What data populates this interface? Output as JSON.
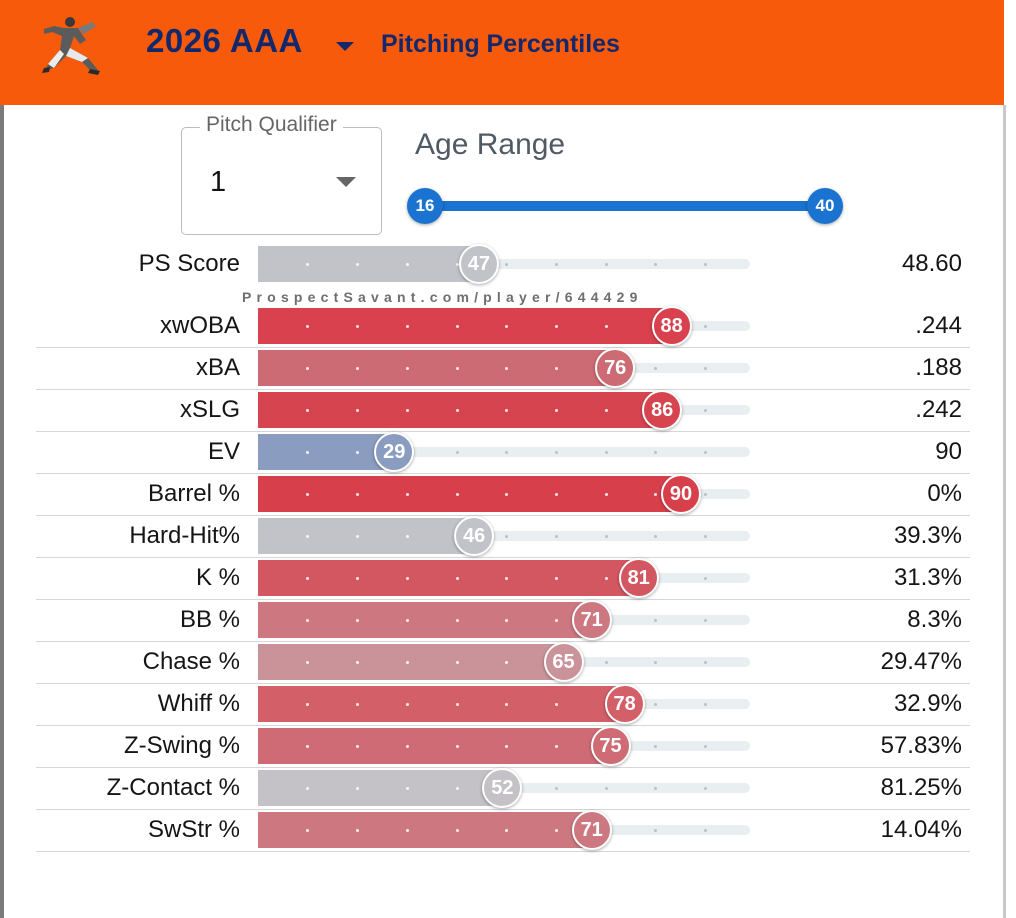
{
  "header": {
    "season": "2026 AAA",
    "title": "Pitching Percentiles",
    "logo_icon": "pitcher-silhouette-icon",
    "background_color": "#f75a0a",
    "text_color": "#13286b"
  },
  "filters": {
    "pitch_qualifier_label": "Pitch Qualifier",
    "pitch_qualifier_value": "1",
    "age_range_label": "Age Range",
    "age_min": "16",
    "age_max": "40",
    "slider_color": "#1a73d0"
  },
  "watermark": "ProspectSavant.com/player/644429",
  "metrics": [
    {
      "label": "PS Score",
      "percentile": 47,
      "value": "48.60",
      "color": "#c1c3c9"
    },
    {
      "label": "xwOBA",
      "percentile": 88,
      "value": ".244",
      "color": "#d8414d"
    },
    {
      "label": "xBA",
      "percentile": 76,
      "value": ".188",
      "color": "#cd6b74"
    },
    {
      "label": "xSLG",
      "percentile": 86,
      "value": ".242",
      "color": "#d6454f"
    },
    {
      "label": "EV",
      "percentile": 29,
      "value": "90",
      "color": "#8a9cc0"
    },
    {
      "label": "Barrel %",
      "percentile": 90,
      "value": "0%",
      "color": "#d7404a"
    },
    {
      "label": "Hard-Hit%",
      "percentile": 46,
      "value": "39.3%",
      "color": "#c1c3c9"
    },
    {
      "label": "K %",
      "percentile": 81,
      "value": "31.3%",
      "color": "#d35761"
    },
    {
      "label": "BB %",
      "percentile": 71,
      "value": "8.3%",
      "color": "#cd7880"
    },
    {
      "label": "Chase %",
      "percentile": 65,
      "value": "29.47%",
      "color": "#c99399"
    },
    {
      "label": "Whiff %",
      "percentile": 78,
      "value": "32.9%",
      "color": "#d35f69"
    },
    {
      "label": "Z-Swing %",
      "percentile": 75,
      "value": "57.83%",
      "color": "#cf6b74"
    },
    {
      "label": "Z-Contact %",
      "percentile": 52,
      "value": "81.25%",
      "color": "#c4c2c6"
    },
    {
      "label": "SwStr %",
      "percentile": 71,
      "value": "14.04%",
      "color": "#cd7880"
    }
  ]
}
